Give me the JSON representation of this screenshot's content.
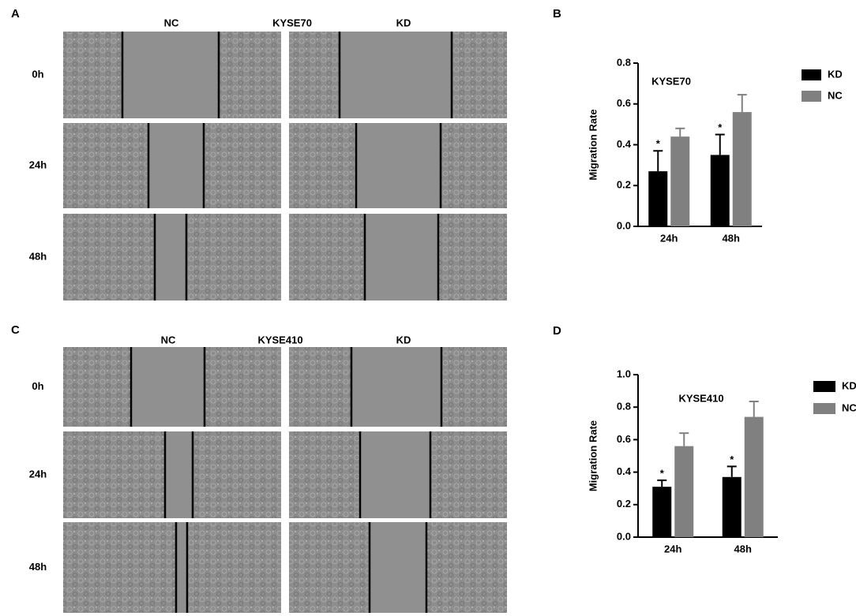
{
  "panels": {
    "A": {
      "label": "A",
      "columns": [
        "NC",
        "KYSE70",
        "KD"
      ],
      "rows": [
        "0h",
        "24h",
        "48h"
      ]
    },
    "C": {
      "label": "C",
      "columns": [
        "NC",
        "KYSE410",
        "KD"
      ],
      "rows": [
        "0h",
        "24h",
        "48h"
      ]
    },
    "B": {
      "label": "B"
    },
    "D": {
      "label": "D"
    }
  },
  "chart_data": [
    {
      "type": "bar",
      "title": "KYSE70",
      "y_label": "Migration Rate",
      "categories": [
        "24h",
        "48h"
      ],
      "series": [
        {
          "name": "KD",
          "color": "#000000",
          "values": [
            0.27,
            0.35
          ],
          "errors": [
            0.1,
            0.1
          ],
          "annotations": [
            "*",
            "*"
          ]
        },
        {
          "name": "NC",
          "color": "#808080",
          "values": [
            0.44,
            0.56
          ],
          "errors": [
            0.04,
            0.085
          ]
        }
      ],
      "ylim": [
        0,
        0.8
      ],
      "yticks": [
        {
          "value": 0,
          "label": "0.0"
        },
        0.2,
        0.4,
        0.6,
        0.8
      ],
      "legend": "right"
    },
    {
      "type": "bar",
      "title": "KYSE410",
      "y_label": "Migration Rate",
      "categories": [
        "24h",
        "48h"
      ],
      "series": [
        {
          "name": "KD",
          "color": "#000000",
          "values": [
            0.31,
            0.37
          ],
          "errors": [
            0.04,
            0.065
          ],
          "annotations": [
            "*",
            "*"
          ]
        },
        {
          "name": "NC",
          "color": "#808080",
          "values": [
            0.56,
            0.74
          ],
          "errors": [
            0.08,
            0.095
          ]
        }
      ],
      "ylim": [
        0,
        1
      ],
      "yticks": [
        {
          "value": 0,
          "label": "0.0"
        },
        0.2,
        0.4,
        0.6,
        0.8,
        {
          "value": 1,
          "label": "1.0"
        }
      ],
      "legend": "right"
    }
  ]
}
